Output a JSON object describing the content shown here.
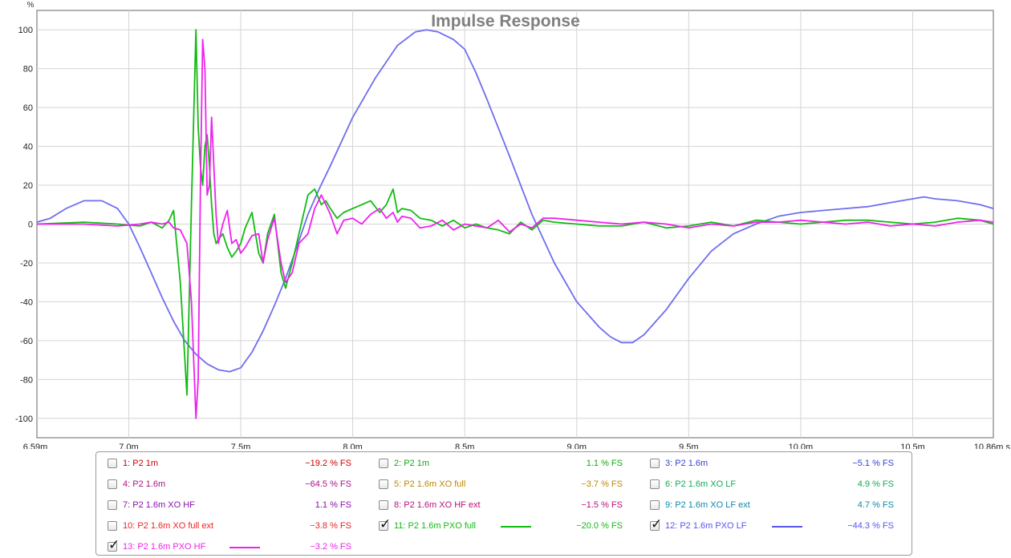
{
  "chart_data": {
    "type": "line",
    "title": "Impulse Response",
    "y_unit": "%",
    "x_unit": "s",
    "xlim": [
      6.59,
      10.86
    ],
    "ylim": [
      -110,
      110
    ],
    "x_tick_values": [
      6.59,
      7.0,
      7.5,
      8.0,
      8.5,
      9.0,
      9.5,
      10.0,
      10.5,
      10.86
    ],
    "x_tick_labels": [
      "6.59m",
      "7.0m",
      "7.5m",
      "8.0m",
      "8.5m",
      "9.0m",
      "9.5m",
      "10.0m",
      "10.5m",
      "10.86m s"
    ],
    "y_ticks": [
      100,
      80,
      60,
      40,
      20,
      0,
      -20,
      -40,
      -60,
      -80,
      -100
    ],
    "grid": true,
    "series": [
      {
        "name": "12: P2 1.6m PXO LF",
        "color": "#6e6ef0",
        "x": [
          6.59,
          6.65,
          6.72,
          6.8,
          6.88,
          6.95,
          7.0,
          7.05,
          7.1,
          7.15,
          7.2,
          7.25,
          7.3,
          7.35,
          7.4,
          7.45,
          7.5,
          7.55,
          7.6,
          7.65,
          7.7,
          7.75,
          7.8,
          7.85,
          7.9,
          8.0,
          8.1,
          8.2,
          8.28,
          8.33,
          8.38,
          8.45,
          8.5,
          8.55,
          8.6,
          8.7,
          8.8,
          8.9,
          9.0,
          9.1,
          9.15,
          9.2,
          9.25,
          9.3,
          9.4,
          9.5,
          9.6,
          9.7,
          9.8,
          9.9,
          10.0,
          10.1,
          10.2,
          10.3,
          10.4,
          10.5,
          10.55,
          10.6,
          10.7,
          10.8,
          10.86
        ],
        "y": [
          1,
          3,
          8,
          12,
          12,
          8,
          0,
          -12,
          -25,
          -38,
          -50,
          -60,
          -67,
          -72,
          -75,
          -76,
          -74,
          -66,
          -55,
          -42,
          -28,
          -12,
          5,
          18,
          30,
          55,
          75,
          92,
          99,
          100,
          99,
          95,
          90,
          78,
          64,
          35,
          5,
          -20,
          -40,
          -53,
          -58,
          -61,
          -61,
          -57,
          -44,
          -28,
          -14,
          -5,
          0,
          4,
          6,
          7,
          8,
          9,
          11,
          13,
          14,
          13,
          12,
          10,
          8
        ]
      },
      {
        "name": "11: P2 1.6m PXO full",
        "color": "#11bb11",
        "x": [
          6.59,
          6.8,
          6.95,
          7.05,
          7.1,
          7.15,
          7.18,
          7.2,
          7.23,
          7.26,
          7.28,
          7.3,
          7.31,
          7.32,
          7.33,
          7.34,
          7.35,
          7.36,
          7.37,
          7.38,
          7.39,
          7.4,
          7.42,
          7.44,
          7.46,
          7.48,
          7.5,
          7.52,
          7.55,
          7.58,
          7.6,
          7.62,
          7.65,
          7.68,
          7.7,
          7.73,
          7.76,
          7.8,
          7.83,
          7.86,
          7.88,
          7.9,
          7.93,
          7.96,
          8.0,
          8.04,
          8.08,
          8.12,
          8.15,
          8.18,
          8.2,
          8.22,
          8.26,
          8.3,
          8.35,
          8.4,
          8.45,
          8.5,
          8.55,
          8.6,
          8.65,
          8.7,
          8.75,
          8.8,
          8.85,
          8.9,
          9.0,
          9.1,
          9.2,
          9.3,
          9.4,
          9.5,
          9.6,
          9.7,
          9.8,
          9.9,
          10.0,
          10.1,
          10.2,
          10.3,
          10.4,
          10.5,
          10.6,
          10.7,
          10.8,
          10.86
        ],
        "y": [
          0,
          1,
          0,
          -1,
          1,
          -2,
          2,
          7,
          -30,
          -88,
          10,
          100,
          50,
          30,
          20,
          40,
          46,
          30,
          10,
          -5,
          -10,
          -8,
          -5,
          -12,
          -17,
          -14,
          -10,
          -2,
          6,
          -15,
          -20,
          -5,
          5,
          -25,
          -33,
          -20,
          -5,
          15,
          18,
          10,
          12,
          8,
          3,
          6,
          8,
          10,
          12,
          6,
          10,
          18,
          6,
          8,
          7,
          3,
          2,
          -1,
          2,
          -2,
          0,
          -2,
          -3,
          -5,
          1,
          -3,
          2,
          1,
          0,
          -1,
          -1,
          1,
          -2,
          -1,
          1,
          -1,
          2,
          1,
          0,
          1,
          2,
          2,
          1,
          0,
          1,
          3,
          2,
          0
        ]
      },
      {
        "name": "13: P2 1.6m PXO HF",
        "color": "#ee22ee",
        "x": [
          6.59,
          6.8,
          6.95,
          7.05,
          7.1,
          7.15,
          7.18,
          7.2,
          7.23,
          7.26,
          7.28,
          7.3,
          7.31,
          7.32,
          7.33,
          7.34,
          7.35,
          7.36,
          7.37,
          7.38,
          7.39,
          7.4,
          7.42,
          7.44,
          7.46,
          7.48,
          7.5,
          7.52,
          7.55,
          7.58,
          7.6,
          7.62,
          7.65,
          7.68,
          7.7,
          7.73,
          7.76,
          7.8,
          7.83,
          7.86,
          7.88,
          7.9,
          7.93,
          7.96,
          8.0,
          8.04,
          8.08,
          8.12,
          8.15,
          8.18,
          8.2,
          8.22,
          8.26,
          8.3,
          8.35,
          8.4,
          8.45,
          8.5,
          8.55,
          8.6,
          8.65,
          8.7,
          8.75,
          8.8,
          8.85,
          8.9,
          9.0,
          9.1,
          9.2,
          9.3,
          9.4,
          9.5,
          9.6,
          9.7,
          9.8,
          9.9,
          10.0,
          10.1,
          10.2,
          10.3,
          10.4,
          10.5,
          10.6,
          10.7,
          10.8,
          10.86
        ],
        "y": [
          0,
          0,
          -1,
          0,
          1,
          0,
          1,
          -2,
          -3,
          -10,
          -40,
          -100,
          -80,
          20,
          95,
          80,
          15,
          20,
          55,
          30,
          5,
          -10,
          0,
          7,
          -10,
          -8,
          -15,
          -12,
          -6,
          -5,
          -20,
          -8,
          3,
          -20,
          -30,
          -25,
          -10,
          -5,
          8,
          15,
          10,
          5,
          -5,
          2,
          3,
          0,
          5,
          8,
          3,
          6,
          1,
          4,
          3,
          -2,
          -1,
          2,
          -3,
          0,
          -1,
          -2,
          2,
          -4,
          0,
          -2,
          3,
          3,
          2,
          1,
          0,
          1,
          0,
          -2,
          0,
          -1,
          1,
          1,
          2,
          1,
          0,
          1,
          -1,
          0,
          -1,
          1,
          2,
          1
        ]
      }
    ],
    "legend": [
      {
        "label": "1: P2 1m",
        "value": "−19.2 % FS",
        "color": "#cc0000",
        "checked": false
      },
      {
        "label": "2: P2 1m",
        "value": "1.1 % FS",
        "color": "#11aa11",
        "checked": false
      },
      {
        "label": "3: P2 1.6m",
        "value": "−5.1 % FS",
        "color": "#3344cc",
        "checked": false
      },
      {
        "label": "4: P2 1.6m",
        "value": "−64.5 % FS",
        "color": "#aa1188",
        "checked": false
      },
      {
        "label": "5: P2 1.6m XO full",
        "value": "−3.7 % FS",
        "color": "#bb8800",
        "checked": false
      },
      {
        "label": "6: P2 1.6m XO LF",
        "value": "4.9 % FS",
        "color": "#11aa55",
        "checked": false
      },
      {
        "label": "7: P2 1.6m XO HF",
        "value": "1.1 % FS",
        "color": "#8811aa",
        "checked": false
      },
      {
        "label": "8: P2 1.6m XO HF ext",
        "value": "−1.5 % FS",
        "color": "#bb1177",
        "checked": false
      },
      {
        "label": "9: P2 1.6m XO LF ext",
        "value": "4.7 % FS",
        "color": "#1188aa",
        "checked": false
      },
      {
        "label": "10: P2 1.6m XO full ext",
        "value": "−3.8 % FS",
        "color": "#ee2222",
        "checked": false
      },
      {
        "label": "11: P2 1.6m PXO full",
        "value": "−20.0 % FS",
        "color": "#11bb11",
        "checked": true
      },
      {
        "label": "12: P2 1.6m PXO LF",
        "value": "−44.3 % FS",
        "color": "#5555ee",
        "checked": true
      },
      {
        "label": "13: P2 1.6m PXO HF",
        "value": "−3.2 % FS",
        "color": "#ee22ee",
        "checked": true
      }
    ]
  }
}
